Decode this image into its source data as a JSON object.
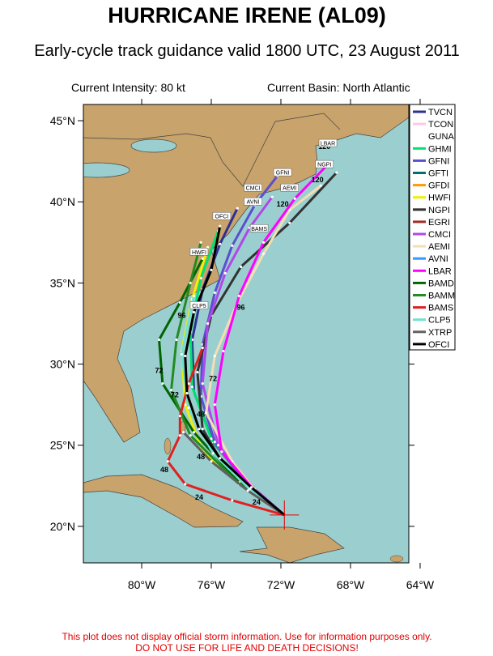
{
  "title": "HURRICANE IRENE (AL09)",
  "subtitle": "Early-cycle track guidance valid 1800 UTC, 23 August 2011",
  "intensity": "Current Intensity: 80 kt",
  "basin": "Current Basin: North Atlantic",
  "disclaimer": [
    "This plot does not display official storm information. Use for information purposes only.",
    "DO NOT USE FOR LIFE AND DEATH DECISIONS!"
  ],
  "map": {
    "lon_range": [
      -83.35,
      -64.65
    ],
    "lat_range": [
      17.75,
      46
    ],
    "lon_ticks": [
      {
        "value": -80,
        "label": "80°W"
      },
      {
        "value": -76,
        "label": "76°W"
      },
      {
        "value": -72,
        "label": "72°W"
      },
      {
        "value": -68,
        "label": "68°W"
      },
      {
        "value": -64,
        "label": "64°W"
      }
    ],
    "lat_ticks": [
      {
        "value": 20,
        "label": "20°N"
      },
      {
        "value": 25,
        "label": "25°N"
      },
      {
        "value": 30,
        "label": "30°N"
      },
      {
        "value": 35,
        "label": "35°N"
      },
      {
        "value": 40,
        "label": "40°N"
      },
      {
        "value": 45,
        "label": "45°N"
      }
    ],
    "storm_position": [
      -71.8,
      20.7
    ]
  },
  "models": [
    {
      "name": "TVCN",
      "color": "#2e3192",
      "track": [
        [
          -71.8,
          20.7
        ],
        [
          -73.8,
          22.4
        ],
        [
          -75.9,
          25.2
        ],
        [
          -77,
          28.3
        ],
        [
          -77.1,
          31.5
        ],
        [
          -76.5,
          34.6
        ],
        [
          -75.5,
          37.4
        ],
        [
          -74.5,
          39.6
        ]
      ]
    },
    {
      "name": "TCON",
      "color": "#ffc8e6",
      "track": []
    },
    {
      "name": "GUNA",
      "color": "#ffffff",
      "track": []
    },
    {
      "name": "GHMI",
      "color": "#00e070",
      "track": [
        [
          -71.8,
          20.7
        ],
        [
          -74,
          22.6
        ],
        [
          -76,
          25.4
        ],
        [
          -77.1,
          28.6
        ],
        [
          -77.2,
          32
        ],
        [
          -76.6,
          35.3
        ],
        [
          -75.6,
          38.2
        ]
      ]
    },
    {
      "name": "GFNI",
      "color": "#5a4fcf",
      "track": [
        [
          -71.8,
          20.7
        ],
        [
          -73.9,
          22.5
        ],
        [
          -75.8,
          25.2
        ],
        [
          -76.6,
          28
        ],
        [
          -76.5,
          31.2
        ],
        [
          -75.8,
          34.4
        ],
        [
          -74.8,
          37.3
        ],
        [
          -73.5,
          39.8
        ],
        [
          -72.2,
          41.6
        ]
      ]
    },
    {
      "name": "GFTI",
      "color": "#007070",
      "track": []
    },
    {
      "name": "GFDI",
      "color": "#ff9900",
      "track": []
    },
    {
      "name": "HWFI",
      "color": "#f0f000",
      "track": [
        [
          -71.8,
          20.7
        ],
        [
          -74,
          22.4
        ],
        [
          -76.5,
          24.6
        ],
        [
          -77.5,
          27.5
        ],
        [
          -77.7,
          30.8
        ],
        [
          -77.1,
          34
        ],
        [
          -76.2,
          37.2
        ]
      ]
    },
    {
      "name": "NGPI",
      "color": "#333333",
      "track": [
        [
          -71.8,
          20.7
        ],
        [
          -73.3,
          22.1
        ],
        [
          -75.3,
          23.8
        ],
        [
          -76.5,
          26
        ],
        [
          -76.8,
          29.5
        ],
        [
          -76,
          33
        ],
        [
          -74.3,
          36
        ],
        [
          -71.5,
          38.7
        ],
        [
          -68.8,
          41.8
        ]
      ]
    },
    {
      "name": "EGRI",
      "color": "#a52a2a",
      "track": []
    },
    {
      "name": "CMCI",
      "color": "#b048e8",
      "track": [
        [
          -71.8,
          20.7
        ],
        [
          -73.5,
          22.3
        ],
        [
          -75.6,
          25
        ],
        [
          -76.5,
          28.8
        ],
        [
          -76.2,
          32.5
        ],
        [
          -75.2,
          35.6
        ],
        [
          -73.8,
          38.4
        ],
        [
          -72.5,
          40.3
        ]
      ]
    },
    {
      "name": "AEMI",
      "color": "#f5deb3",
      "track": [
        [
          -71.8,
          20.7
        ],
        [
          -73.3,
          22
        ],
        [
          -74.8,
          24
        ],
        [
          -76.3,
          27
        ],
        [
          -75.8,
          30.5
        ],
        [
          -74.5,
          33.8
        ],
        [
          -73,
          36.8
        ],
        [
          -71.5,
          39.5
        ],
        [
          -69.7,
          41
        ]
      ]
    },
    {
      "name": "AVNI",
      "color": "#3399ff",
      "track": []
    },
    {
      "name": "LBAR",
      "color": "#ff00ff",
      "track": [
        [
          -71.8,
          20.7
        ],
        [
          -73.6,
          22.3
        ],
        [
          -75.4,
          24.6
        ],
        [
          -75.8,
          27.5
        ],
        [
          -75.3,
          30.8
        ],
        [
          -74.4,
          34.2
        ],
        [
          -73,
          37.5
        ],
        [
          -71.2,
          40.2
        ],
        [
          -69.3,
          42.3
        ]
      ]
    },
    {
      "name": "BAMD",
      "color": "#006400",
      "track": [
        [
          -71.8,
          20.7
        ],
        [
          -74.4,
          22.7
        ],
        [
          -77,
          25.8
        ],
        [
          -78.8,
          28.8
        ],
        [
          -79,
          31.5
        ],
        [
          -77.8,
          33.8
        ],
        [
          -76.5,
          36.5
        ]
      ]
    },
    {
      "name": "BAMM",
      "color": "#228b22",
      "track": [
        [
          -71.8,
          20.7
        ],
        [
          -74.4,
          22.6
        ],
        [
          -77.2,
          25.6
        ],
        [
          -78.3,
          28.4
        ],
        [
          -78,
          31.5
        ],
        [
          -77.2,
          35
        ],
        [
          -76.6,
          37.5
        ]
      ]
    },
    {
      "name": "BAMS",
      "color": "#e02020",
      "track": [
        [
          -71.8,
          20.7
        ],
        [
          -74.8,
          21.6
        ],
        [
          -77.5,
          22.6
        ],
        [
          -78.5,
          24
        ],
        [
          -77.8,
          25.6
        ],
        [
          -77.8,
          26.8
        ],
        [
          -77.3,
          28.8
        ],
        [
          -76.5,
          31
        ]
      ]
    },
    {
      "name": "CLP5",
      "color": "#70e0d0",
      "track": [
        [
          -71.8,
          20.7
        ],
        [
          -73.8,
          22.3
        ],
        [
          -75.9,
          24.5
        ],
        [
          -77.3,
          27.3
        ],
        [
          -77.7,
          30.6
        ],
        [
          -77,
          34.2
        ]
      ]
    },
    {
      "name": "XTRP",
      "color": "#606060",
      "track": [
        [
          -71.8,
          20.7
        ],
        [
          -73.9,
          22.2
        ],
        [
          -76,
          24
        ],
        [
          -77.6,
          25.8
        ]
      ]
    },
    {
      "name": "OFCI",
      "color": "#000000",
      "track": [
        [
          -71.8,
          20.7
        ],
        [
          -73.7,
          22.4
        ],
        [
          -75.5,
          24.2
        ],
        [
          -76.7,
          26
        ],
        [
          -77.4,
          28.2
        ],
        [
          -77.5,
          30.5
        ],
        [
          -77,
          33.2
        ],
        [
          -76,
          35.8
        ],
        [
          -75.5,
          38.5
        ]
      ]
    }
  ],
  "hour_labels": [
    {
      "text": "24",
      "lon": -76.7,
      "lat": 21.8
    },
    {
      "text": "24",
      "lon": -73.4,
      "lat": 21.5
    },
    {
      "text": "48",
      "lon": -78.7,
      "lat": 23.5
    },
    {
      "text": "48",
      "lon": -76.6,
      "lat": 24.3
    },
    {
      "text": "48",
      "lon": -76.6,
      "lat": 26.9
    },
    {
      "text": "72",
      "lon": -79,
      "lat": 29.6
    },
    {
      "text": "72",
      "lon": -75.9,
      "lat": 29.1
    },
    {
      "text": "72",
      "lon": -78.1,
      "lat": 28.1
    },
    {
      "text": "96",
      "lon": -77.7,
      "lat": 33
    },
    {
      "text": "96",
      "lon": -74.3,
      "lat": 33.5
    },
    {
      "text": "120",
      "lon": -71.9,
      "lat": 39.85
    },
    {
      "text": "120",
      "lon": -69.9,
      "lat": 41.35
    },
    {
      "text": "120",
      "lon": -69.5,
      "lat": 43.4
    }
  ],
  "track_tags": [
    {
      "text": "LBAR",
      "lon": -69.3,
      "lat": 43.6
    },
    {
      "text": "NGPI",
      "lon": -69.5,
      "lat": 42.3
    },
    {
      "text": "GFNI",
      "lon": -71.9,
      "lat": 41.8
    },
    {
      "text": "AEMI",
      "lon": -71.5,
      "lat": 40.85
    },
    {
      "text": "CMCI",
      "lon": -73.6,
      "lat": 40.85
    },
    {
      "text": "AVNI",
      "lon": -73.6,
      "lat": 40
    },
    {
      "text": "OFCI",
      "lon": -75.4,
      "lat": 39.1
    },
    {
      "text": "BAMS",
      "lon": -73.25,
      "lat": 38.35
    },
    {
      "text": "HWFI",
      "lon": -76.7,
      "lat": 36.9
    },
    {
      "text": "CLP5",
      "lon": -76.7,
      "lat": 33.6
    }
  ]
}
